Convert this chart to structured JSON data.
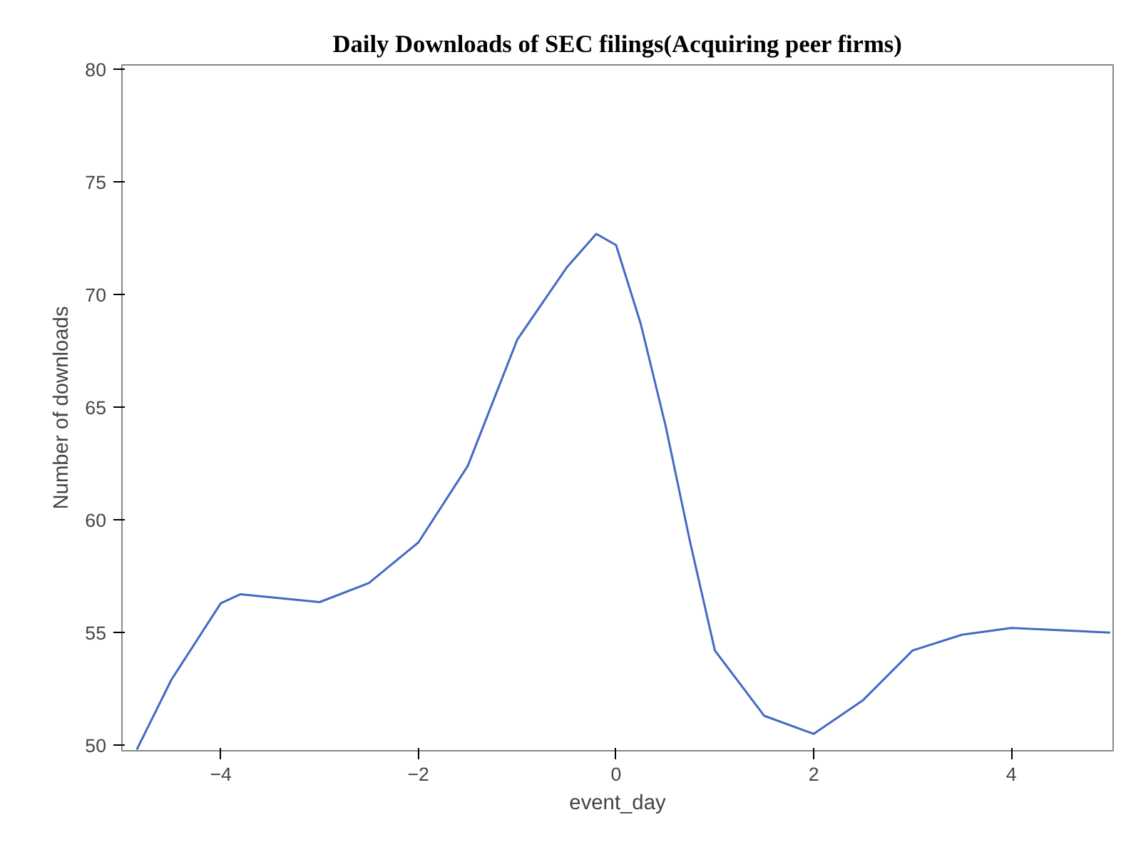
{
  "chart_data": {
    "type": "line",
    "title": "Daily Downloads of SEC filings(Acquiring peer firms)",
    "xlabel": "event_day",
    "ylabel": "Number of downloads",
    "x": [
      -4.85,
      -4.5,
      -4,
      -3.8,
      -3,
      -2.5,
      -2,
      -1.5,
      -1,
      -0.5,
      -0.2,
      0,
      0.25,
      0.5,
      0.75,
      1,
      1.5,
      2,
      2.5,
      3,
      3.5,
      4,
      5
    ],
    "series": [
      {
        "color": "#4569c4",
        "values": [
          49.8,
          52.9,
          56.3,
          56.7,
          56.35,
          57.2,
          59.0,
          62.4,
          68.0,
          71.2,
          72.7,
          72.2,
          68.7,
          64.2,
          59.0,
          54.2,
          51.3,
          50.5,
          52.0,
          54.2,
          54.9,
          55.2,
          55.0
        ]
      }
    ],
    "xlim": [
      -5,
      5.03
    ],
    "ylim": [
      49.75,
      80.2
    ],
    "xticks": [
      -4,
      -2,
      0,
      2,
      4
    ],
    "yticks": [
      50,
      55,
      60,
      65,
      70,
      75,
      80
    ],
    "grid": false,
    "marker": "none",
    "line_style": "solid"
  }
}
